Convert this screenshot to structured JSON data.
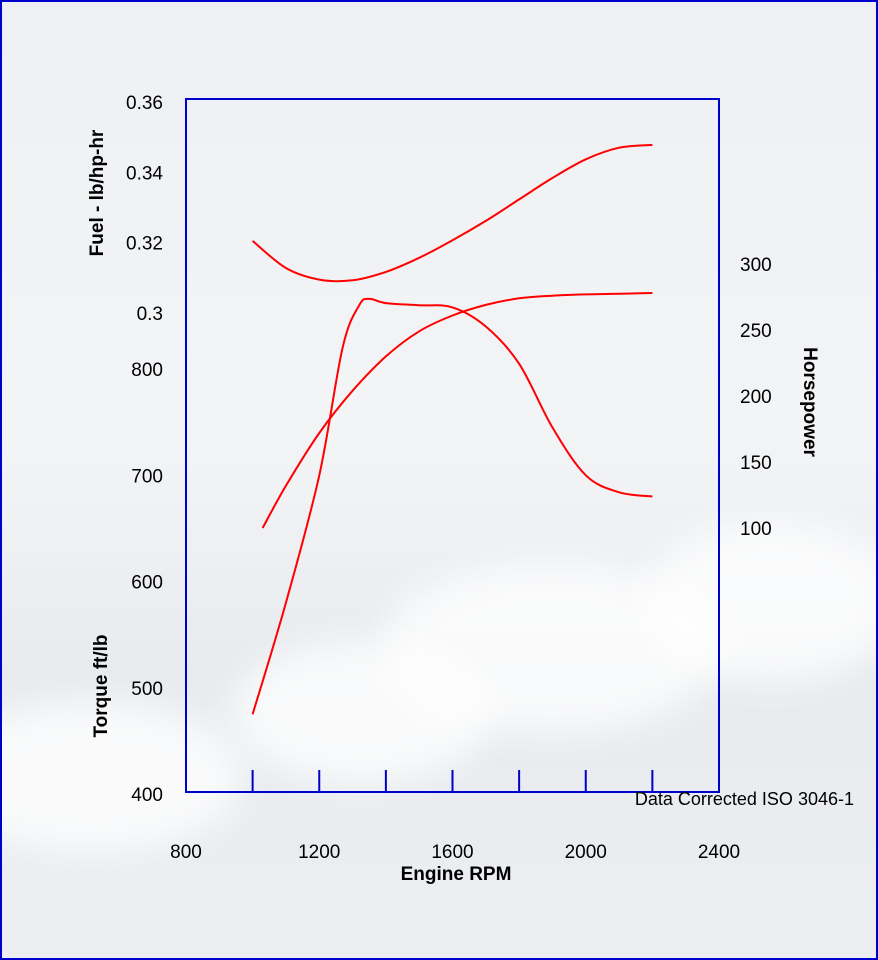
{
  "chart_data": {
    "type": "line",
    "x_axis": {
      "label": "Engine RPM",
      "range": [
        800,
        2400
      ],
      "ticks": [
        800,
        1000,
        1200,
        1400,
        1600,
        1800,
        2000,
        2200,
        2400
      ],
      "tick_labels": [
        "800",
        "1200",
        "1600",
        "2000",
        "2400"
      ]
    },
    "fuel_axis": {
      "label": "Fuel - lb/hp-hr",
      "ticks": [
        "0.36",
        "0.34",
        "0.32",
        "0.3"
      ],
      "tick_values": [
        0.36,
        0.34,
        0.32,
        0.3
      ]
    },
    "horsepower_axis": {
      "label": "Horsepower",
      "ticks": [
        "300",
        "250",
        "200",
        "150",
        "100"
      ],
      "tick_values": [
        300,
        250,
        200,
        150,
        100
      ]
    },
    "torque_axis": {
      "label": "Torque ft/lb",
      "ticks": [
        "800",
        "700",
        "600",
        "500",
        "400"
      ],
      "tick_values": [
        800,
        700,
        600,
        500,
        400
      ]
    },
    "series": [
      {
        "axis": "fuel",
        "x": [
          1000,
          1100,
          1200,
          1300,
          1400,
          1500,
          1600,
          1700,
          1800,
          1900,
          2000,
          2100,
          2200
        ],
        "y": [
          0.3205,
          0.3128,
          0.3095,
          0.3093,
          0.3117,
          0.3157,
          0.3207,
          0.3262,
          0.3323,
          0.3384,
          0.3437,
          0.347,
          0.3478
        ]
      },
      {
        "axis": "horsepower",
        "x": [
          1030,
          1100,
          1200,
          1300,
          1400,
          1500,
          1600,
          1700,
          1800,
          1900,
          2000,
          2100,
          2200
        ],
        "y": [
          100,
          132,
          172,
          204,
          230,
          249,
          261,
          269,
          274,
          276,
          277,
          277.5,
          278
        ]
      },
      {
        "axis": "torque",
        "x": [
          1000,
          1100,
          1200,
          1270,
          1320,
          1350,
          1400,
          1500,
          1600,
          1700,
          1800,
          1900,
          2000,
          2100,
          2200
        ],
        "y": [
          475,
          580,
          700,
          820,
          860,
          866,
          862,
          860,
          858,
          840,
          805,
          745,
          700,
          684,
          680
        ]
      }
    ],
    "colors": {
      "line": "#ff0000",
      "axes": "#0000cc",
      "border": "#0000cc"
    },
    "grid": false,
    "legend": "none"
  },
  "footnote": "Data Corrected ISO 3046-1"
}
